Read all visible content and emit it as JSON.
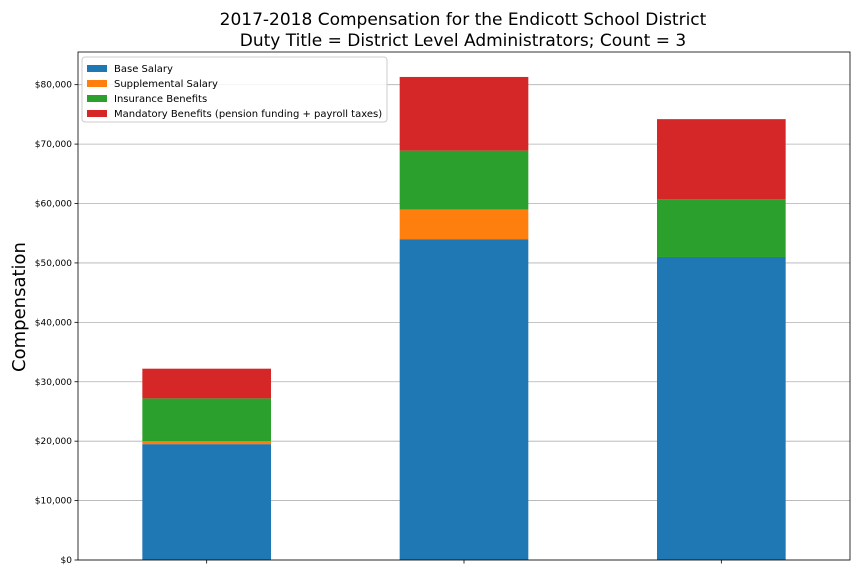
{
  "chart_data": {
    "type": "bar",
    "stacked": true,
    "title": "2017-2018 Compensation for the Endicott School District",
    "subtitle": "Duty Title = District Level Administrators; Count = 3",
    "xlabel": "",
    "ylabel": "Compensation",
    "ylim": [
      0,
      85500
    ],
    "yticks": [
      0,
      10000,
      20000,
      30000,
      40000,
      50000,
      60000,
      70000,
      80000
    ],
    "ytick_labels": [
      "$0",
      "$10,000",
      "$20,000",
      "$30,000",
      "$40,000",
      "$50,000",
      "$60,000",
      "$70,000",
      "$80,000"
    ],
    "categories": [
      "",
      "",
      ""
    ],
    "grid": "horizontal",
    "legend_position": "top-left",
    "series": [
      {
        "name": "Base Salary",
        "color": "#1f77b4",
        "values": [
          19500,
          54000,
          51000
        ]
      },
      {
        "name": "Supplemental Salary",
        "color": "#ff7f0e",
        "values": [
          500,
          5000,
          0
        ]
      },
      {
        "name": "Insurance Benefits",
        "color": "#2ca02c",
        "values": [
          7200,
          9900,
          9700
        ]
      },
      {
        "name": "Mandatory Benefits (pension funding + payroll taxes)",
        "color": "#d62728",
        "values": [
          5000,
          12400,
          13500
        ]
      }
    ]
  }
}
